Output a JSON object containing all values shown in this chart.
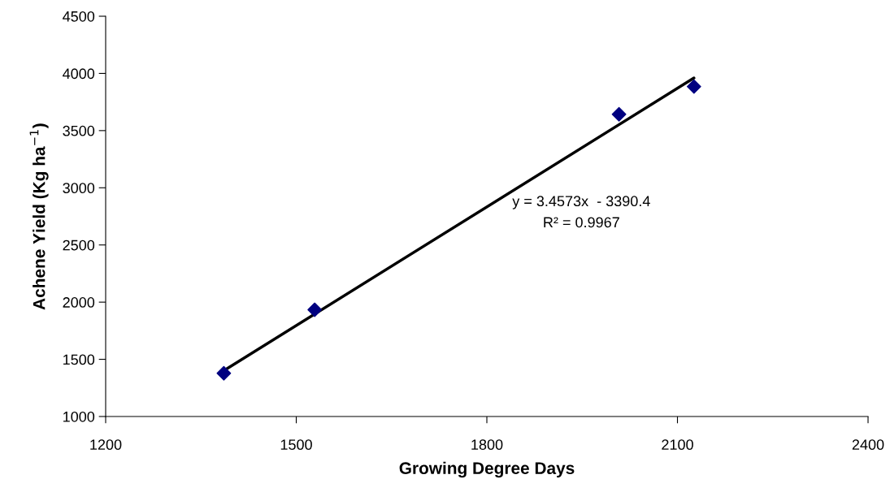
{
  "chart_data": {
    "type": "scatter",
    "xlabel": "Growing Degree Days",
    "ylabel": "Achene Yield (Kg ha$^{−1}$)",
    "x": [
      1386,
      1529,
      2008,
      2126
    ],
    "series": [
      {
        "color": "#000080",
        "marker": "diamond",
        "values": [
          1378,
          1933,
          3643,
          3885
        ]
      },
      {
        "type": "line",
        "color": "#000000",
        "x": [
          1386,
          2126
        ],
        "values": [
          1401,
          3960
        ],
        "marker": "none",
        "line_style": "solid"
      }
    ],
    "annotations": [
      "y = 3.4573x  - 3390.4",
      "R² = 0.9967"
    ],
    "xlim": [
      1200,
      2400
    ],
    "xticks": [
      1200,
      1500,
      1800,
      2100,
      2400
    ],
    "ylim": [
      1000,
      4500
    ],
    "yticks": [
      1000,
      1500,
      2000,
      2500,
      3000,
      3500,
      4000,
      4500
    ],
    "grid": false,
    "legend": false
  }
}
